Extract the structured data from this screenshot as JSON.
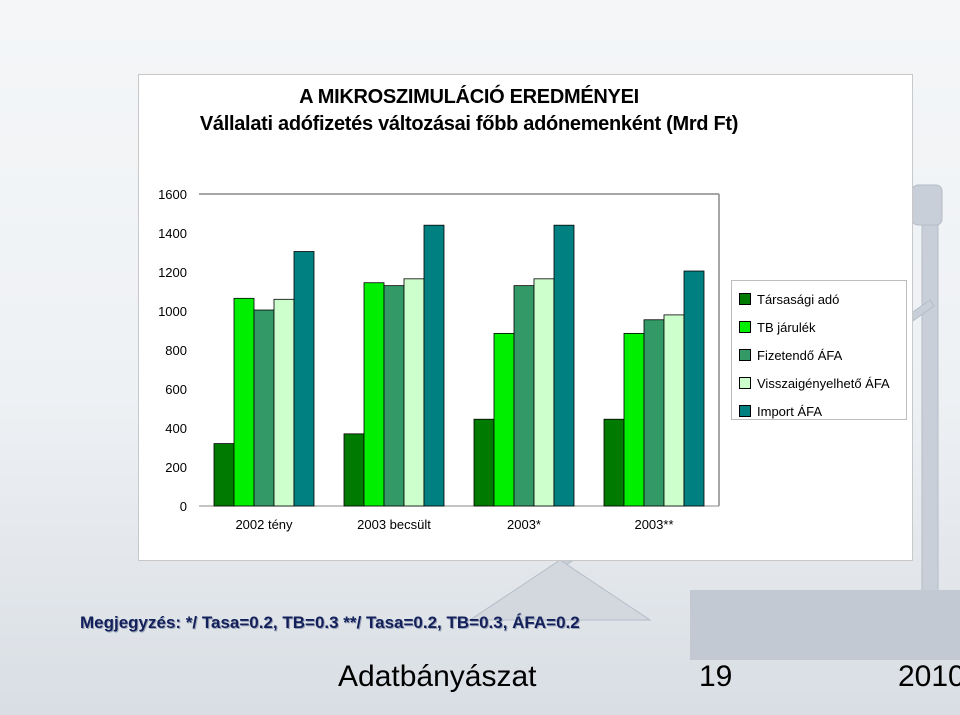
{
  "chart_data": {
    "type": "bar",
    "title": "A MIKROSZIMULÁCIÓ EREDMÉNYEI",
    "subtitle": "Vállalati adófizetés változásai főbb adónemenként (Mrd Ft)",
    "categories": [
      "2002 tény",
      "2003 becsült",
      "2003*",
      "2003**"
    ],
    "ylim": [
      0,
      1600
    ],
    "yticks": [
      0,
      200,
      400,
      600,
      800,
      1000,
      1200,
      1400,
      1600
    ],
    "xlabel": "",
    "ylabel": "",
    "grid": false,
    "legend_position": "right",
    "series": [
      {
        "name": "Társasági adó",
        "color": "#007a00",
        "values": [
          320,
          370,
          445,
          445
        ]
      },
      {
        "name": "TB járulék",
        "color": "#00ee00",
        "values": [
          1065,
          1145,
          885,
          885
        ]
      },
      {
        "name": "Fizetendő ÁFA",
        "color": "#339966",
        "values": [
          1005,
          1130,
          1130,
          955
        ]
      },
      {
        "name": "Visszaigényelhető ÁFA",
        "color": "#ccffcc",
        "values": [
          1060,
          1165,
          1165,
          980
        ]
      },
      {
        "name": "Import ÁFA",
        "color": "#008080",
        "values": [
          1305,
          1440,
          1440,
          1205
        ]
      }
    ]
  },
  "note": "Megjegyzés:  */ Tasa=0.2, TB=0.3  **/ Tasa=0.2, TB=0.3, ÁFA=0.2",
  "footer": {
    "title": "Adatbányászat",
    "page": "19",
    "year": "2010"
  }
}
